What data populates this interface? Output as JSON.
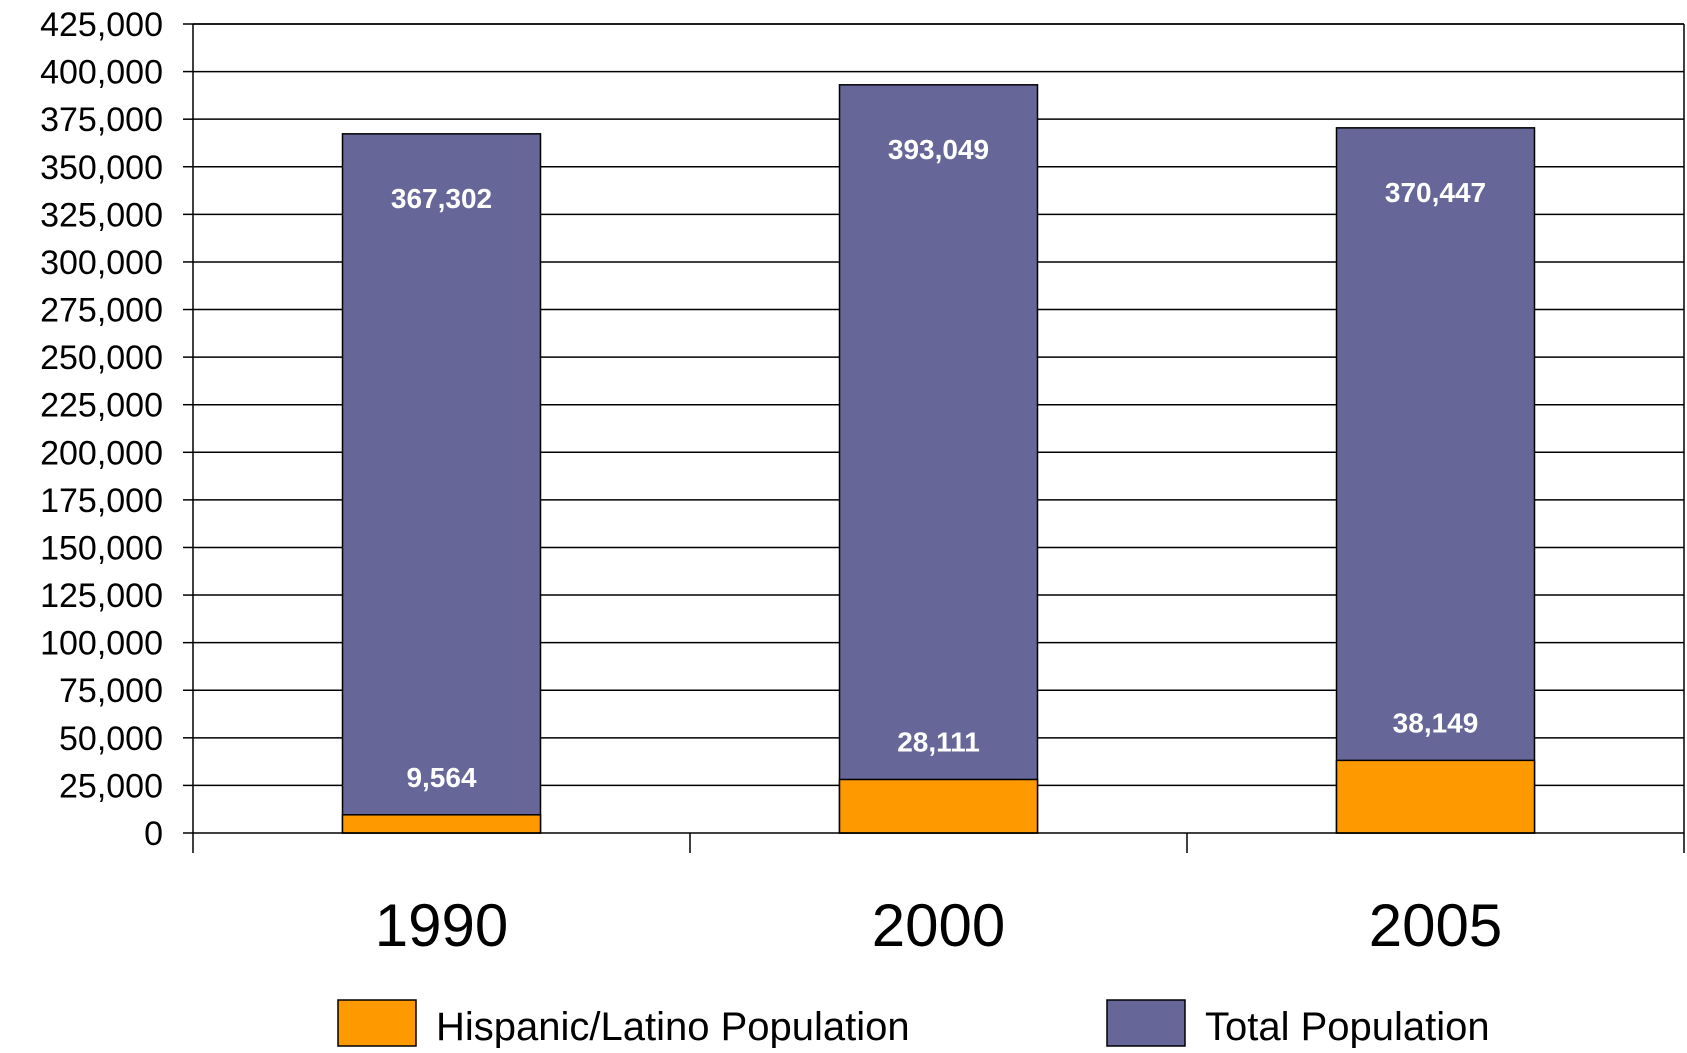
{
  "chart_data": {
    "type": "bar",
    "title": "",
    "xlabel": "",
    "ylabel": "",
    "categories": [
      "1990",
      "2000",
      "2005"
    ],
    "series": [
      {
        "name": "Hispanic/Latino Population",
        "values": [
          9564,
          28111,
          38149
        ],
        "color": "#FF9900",
        "data_labels": [
          "9,564",
          "28,111",
          "38,149"
        ]
      },
      {
        "name": "Total Population",
        "values": [
          367302,
          393049,
          370447
        ],
        "color": "#666699",
        "data_labels": [
          "367,302",
          "393,049",
          "370,447"
        ]
      }
    ],
    "ylim": [
      0,
      425000
    ],
    "yticks": [
      0,
      25000,
      50000,
      75000,
      100000,
      125000,
      150000,
      175000,
      200000,
      225000,
      250000,
      275000,
      300000,
      325000,
      350000,
      375000,
      400000,
      425000
    ],
    "ytick_labels": [
      "0",
      "25,000",
      "50,000",
      "75,000",
      "100,000",
      "125,000",
      "150,000",
      "175,000",
      "200,000",
      "225,000",
      "250,000",
      "275,000",
      "300,000",
      "325,000",
      "350,000",
      "375,000",
      "400,000",
      "425,000"
    ],
    "grid": true,
    "legend_position": "bottom"
  }
}
